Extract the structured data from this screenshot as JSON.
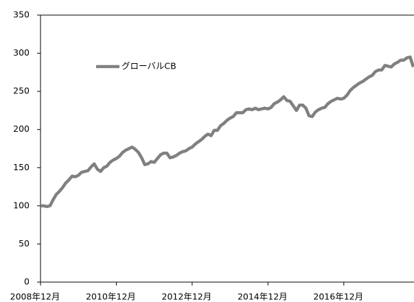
{
  "chart_data": {
    "type": "line",
    "categories": [
      "2008年12月",
      null,
      null,
      null,
      null,
      null,
      null,
      null,
      null,
      null,
      null,
      null,
      null,
      null,
      null,
      null,
      null,
      null,
      null,
      null,
      null,
      null,
      null,
      null,
      "2010年12月",
      null,
      null,
      null,
      null,
      null,
      null,
      null,
      null,
      null,
      null,
      null,
      null,
      null,
      null,
      null,
      null,
      null,
      null,
      null,
      null,
      null,
      null,
      null,
      "2012年12月",
      null,
      null,
      null,
      null,
      null,
      null,
      null,
      null,
      null,
      null,
      null,
      null,
      null,
      null,
      null,
      null,
      null,
      null,
      null,
      null,
      null,
      null,
      null,
      "2014年12月",
      null,
      null,
      null,
      null,
      null,
      null,
      null,
      null,
      null,
      null,
      null,
      null,
      null,
      null,
      null,
      null,
      null,
      null,
      null,
      null,
      null,
      null,
      null,
      "2016年12月",
      null,
      null,
      null,
      null,
      null,
      null,
      null,
      null,
      null,
      null,
      null,
      null,
      null,
      null,
      null,
      null,
      null,
      null,
      null,
      null,
      null,
      null
    ],
    "series": [
      {
        "name": "グローバルCB",
        "color": "#808080",
        "values": [
          100,
          100,
          99,
          100,
          108,
          115,
          119,
          124,
          130,
          134,
          139,
          138,
          140,
          144,
          145,
          146,
          151,
          155,
          148,
          145,
          150,
          152,
          157,
          160,
          162,
          165,
          170,
          173,
          175,
          177,
          174,
          170,
          163,
          154,
          155,
          158,
          157,
          162,
          167,
          169,
          169,
          163,
          164,
          166,
          169,
          171,
          172,
          175,
          177,
          181,
          184,
          187,
          191,
          194,
          192,
          199,
          199,
          205,
          208,
          212,
          215,
          217,
          222,
          222,
          222,
          226,
          227,
          226,
          228,
          226,
          227,
          228,
          227,
          229,
          234,
          236,
          239,
          243,
          238,
          237,
          231,
          225,
          232,
          232,
          228,
          218,
          217,
          223,
          226,
          228,
          229,
          234,
          237,
          239,
          241,
          240,
          241,
          245,
          251,
          255,
          258,
          261,
          263,
          266,
          269,
          271,
          276,
          278,
          278,
          284,
          283,
          282,
          286,
          288,
          291,
          291,
          294,
          295,
          282
        ]
      }
    ],
    "ylim": [
      0,
      350
    ],
    "yticks": [
      0,
      50,
      100,
      150,
      200,
      250,
      300,
      350
    ],
    "legend": "upper left"
  }
}
